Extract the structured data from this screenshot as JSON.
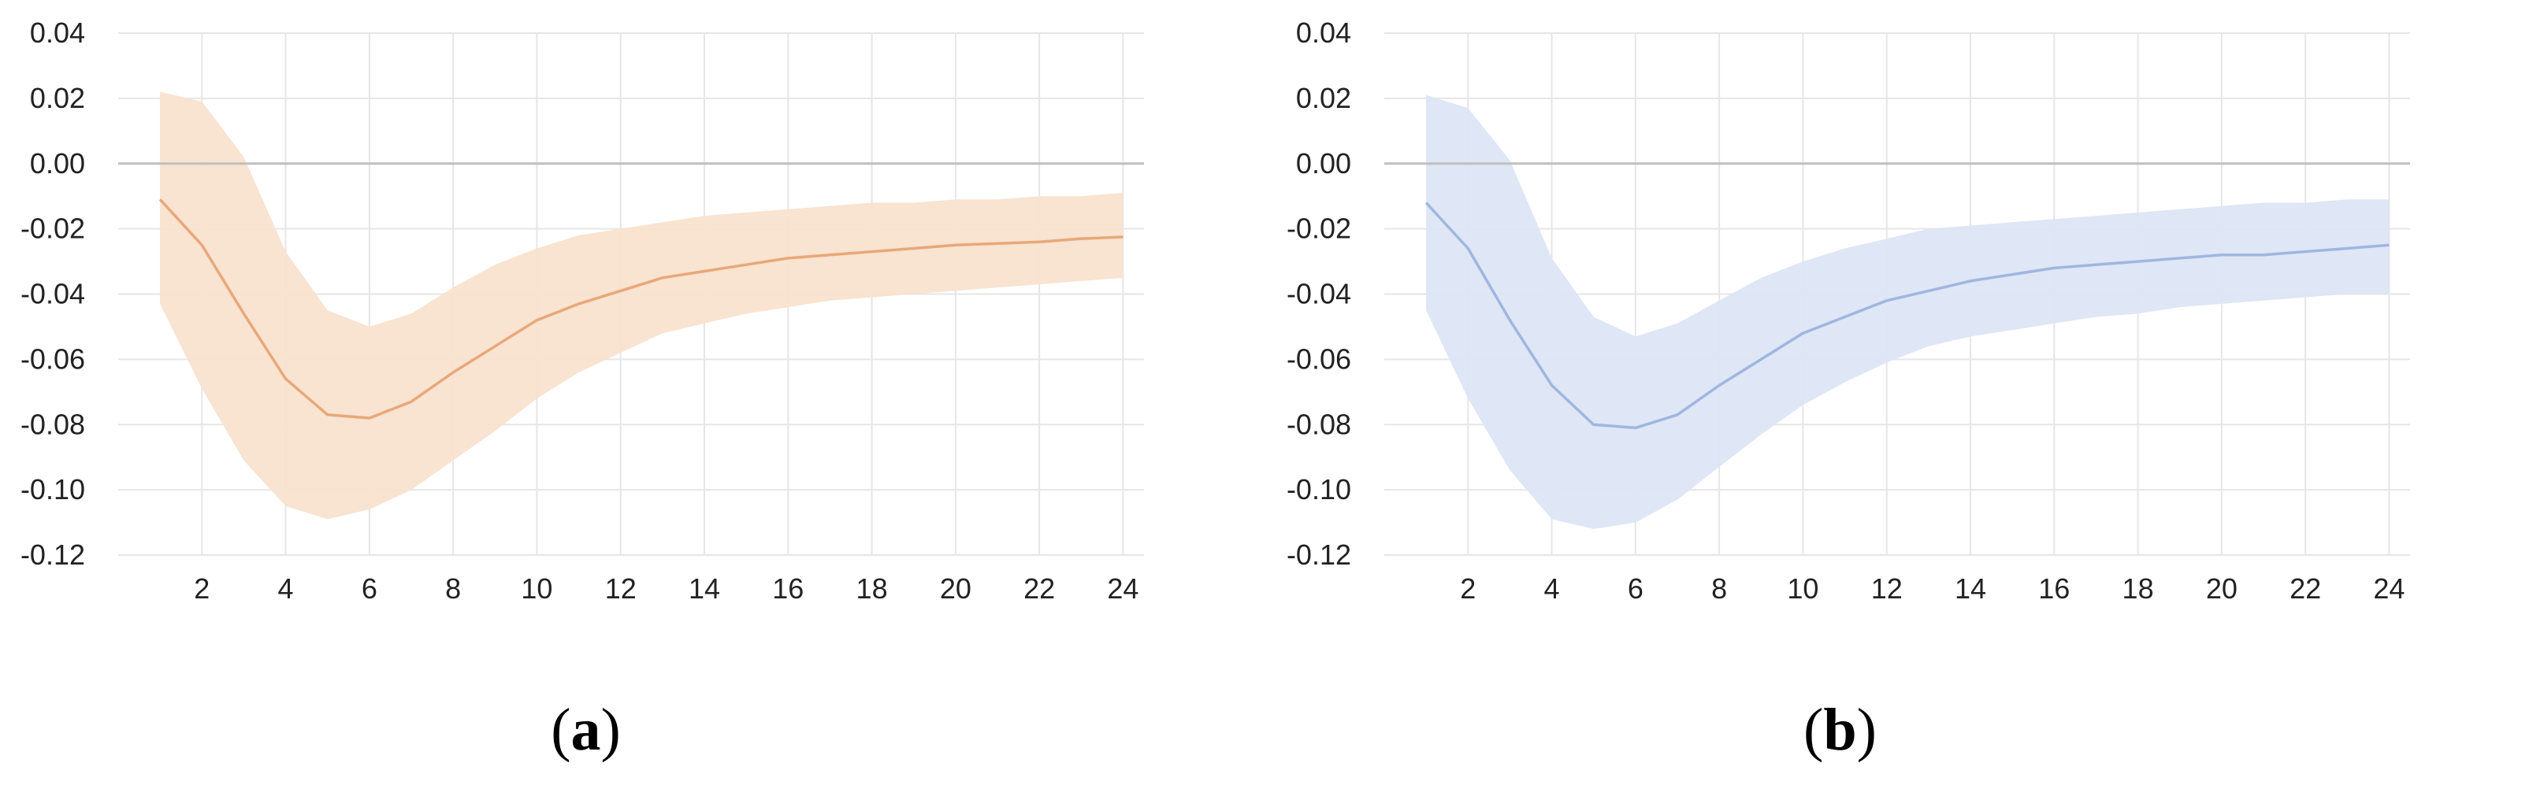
{
  "chart_data": [
    {
      "type": "area",
      "panel_label": "a",
      "x": [
        1,
        2,
        3,
        4,
        5,
        6,
        7,
        8,
        9,
        10,
        11,
        12,
        13,
        14,
        15,
        16,
        17,
        18,
        19,
        20,
        21,
        22,
        23,
        24
      ],
      "series": [
        {
          "values": [
            -0.011,
            -0.025,
            -0.046,
            -0.066,
            -0.077,
            -0.078,
            -0.073,
            -0.064,
            -0.056,
            -0.048,
            -0.043,
            -0.039,
            -0.035,
            -0.033,
            -0.031,
            -0.029,
            -0.028,
            -0.027,
            -0.026,
            -0.025,
            -0.0245,
            -0.024,
            -0.023,
            -0.0225
          ],
          "lower": [
            -0.043,
            -0.069,
            -0.091,
            -0.105,
            -0.109,
            -0.106,
            -0.1,
            -0.091,
            -0.082,
            -0.072,
            -0.064,
            -0.058,
            -0.052,
            -0.049,
            -0.046,
            -0.044,
            -0.042,
            -0.041,
            -0.04,
            -0.039,
            -0.038,
            -0.037,
            -0.036,
            -0.035
          ],
          "upper": [
            0.022,
            0.019,
            0.002,
            -0.027,
            -0.045,
            -0.05,
            -0.046,
            -0.038,
            -0.031,
            -0.026,
            -0.022,
            -0.02,
            -0.018,
            -0.016,
            -0.015,
            -0.014,
            -0.013,
            -0.012,
            -0.012,
            -0.011,
            -0.011,
            -0.01,
            -0.01,
            -0.009
          ]
        }
      ],
      "x_ticks": [
        "2",
        "4",
        "6",
        "8",
        "10",
        "12",
        "14",
        "16",
        "18",
        "20",
        "22",
        "24"
      ],
      "y_ticks": [
        "0.04",
        "0.02",
        "0.00",
        "-0.02",
        "-0.04",
        "-0.06",
        "-0.08",
        "-0.10",
        "-0.12"
      ],
      "ylim": [
        -0.12,
        0.04
      ],
      "xlim": [
        0,
        24.5
      ],
      "grid": true,
      "colors": {
        "line": "#e8a87a",
        "band": "#f9e2cf",
        "zero_line": "#bfbfbf",
        "grid": "#e6e6e6"
      }
    },
    {
      "type": "area",
      "panel_label": "b",
      "x": [
        1,
        2,
        3,
        4,
        5,
        6,
        7,
        8,
        9,
        10,
        11,
        12,
        13,
        14,
        15,
        16,
        17,
        18,
        19,
        20,
        21,
        22,
        23,
        24
      ],
      "series": [
        {
          "values": [
            -0.012,
            -0.026,
            -0.048,
            -0.068,
            -0.08,
            -0.081,
            -0.077,
            -0.068,
            -0.06,
            -0.052,
            -0.047,
            -0.042,
            -0.039,
            -0.036,
            -0.034,
            -0.032,
            -0.031,
            -0.03,
            -0.029,
            -0.028,
            -0.028,
            -0.027,
            -0.026,
            -0.025
          ],
          "lower": [
            -0.045,
            -0.072,
            -0.094,
            -0.109,
            -0.112,
            -0.11,
            -0.103,
            -0.093,
            -0.083,
            -0.074,
            -0.067,
            -0.061,
            -0.056,
            -0.053,
            -0.051,
            -0.049,
            -0.047,
            -0.046,
            -0.044,
            -0.043,
            -0.042,
            -0.041,
            -0.04,
            -0.04
          ],
          "upper": [
            0.021,
            0.017,
            0.001,
            -0.029,
            -0.047,
            -0.053,
            -0.049,
            -0.042,
            -0.035,
            -0.03,
            -0.026,
            -0.023,
            -0.02,
            -0.019,
            -0.018,
            -0.017,
            -0.016,
            -0.015,
            -0.014,
            -0.013,
            -0.012,
            -0.012,
            -0.011,
            -0.011
          ]
        }
      ],
      "x_ticks": [
        "2",
        "4",
        "6",
        "8",
        "10",
        "12",
        "14",
        "16",
        "18",
        "20",
        "22",
        "24"
      ],
      "y_ticks": [
        "0.04",
        "0.02",
        "0.00",
        "-0.02",
        "-0.04",
        "-0.06",
        "-0.08",
        "-0.10",
        "-0.12"
      ],
      "ylim": [
        -0.12,
        0.04
      ],
      "xlim": [
        0,
        24.5
      ],
      "grid": true,
      "colors": {
        "line": "#9fb6e0",
        "band": "#dde5f4",
        "zero_line": "#bfbfbf",
        "grid": "#e6e6e6"
      }
    }
  ],
  "captions": [
    {
      "open": "(",
      "letter": "a",
      "close": ")"
    },
    {
      "open": "(",
      "letter": "b",
      "close": ")"
    }
  ]
}
